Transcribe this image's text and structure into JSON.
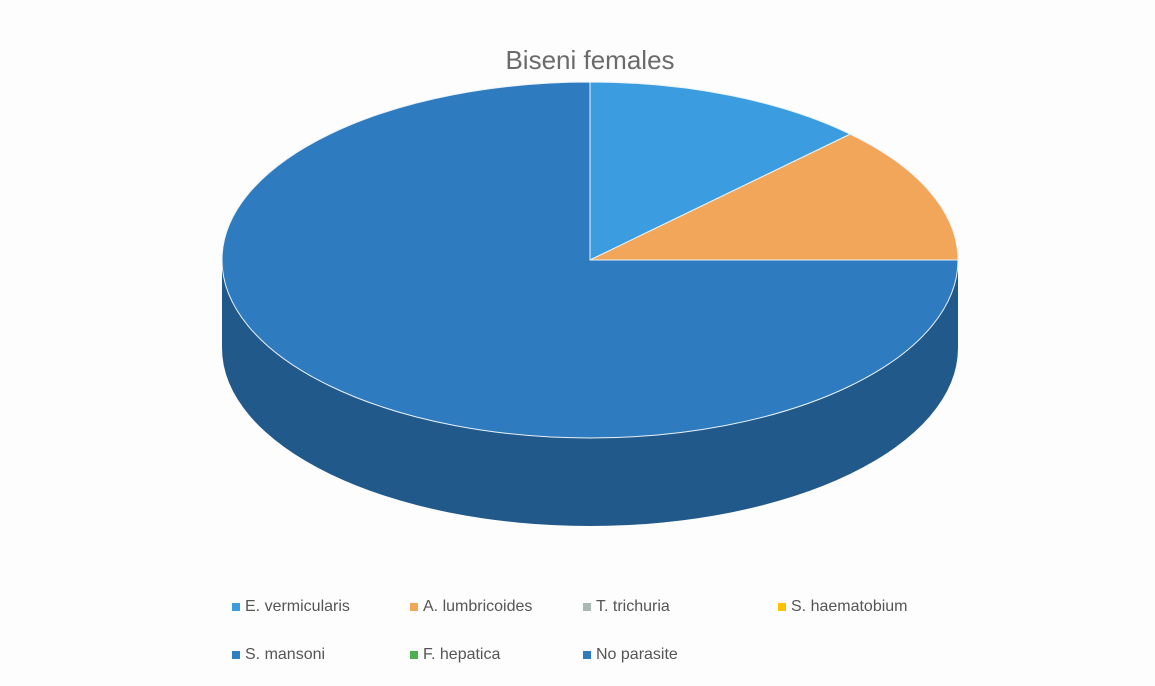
{
  "chart_data": {
    "type": "pie3d",
    "title": "Biseni females",
    "categories": [
      "E. vermicularis",
      "A. lumbricoides",
      "T. trichuria",
      "S. haematobium",
      "S. mansoni",
      "F. hepatica",
      "No parasite"
    ],
    "values": [
      12.5,
      12.5,
      0,
      0,
      0,
      0,
      75
    ],
    "colors": [
      "#3b9de0",
      "#f2a65a",
      "#a9b8b4",
      "#ffc000",
      "#2f7fc4",
      "#4caf50",
      "#2e7bbf"
    ],
    "legend": "bottom"
  }
}
